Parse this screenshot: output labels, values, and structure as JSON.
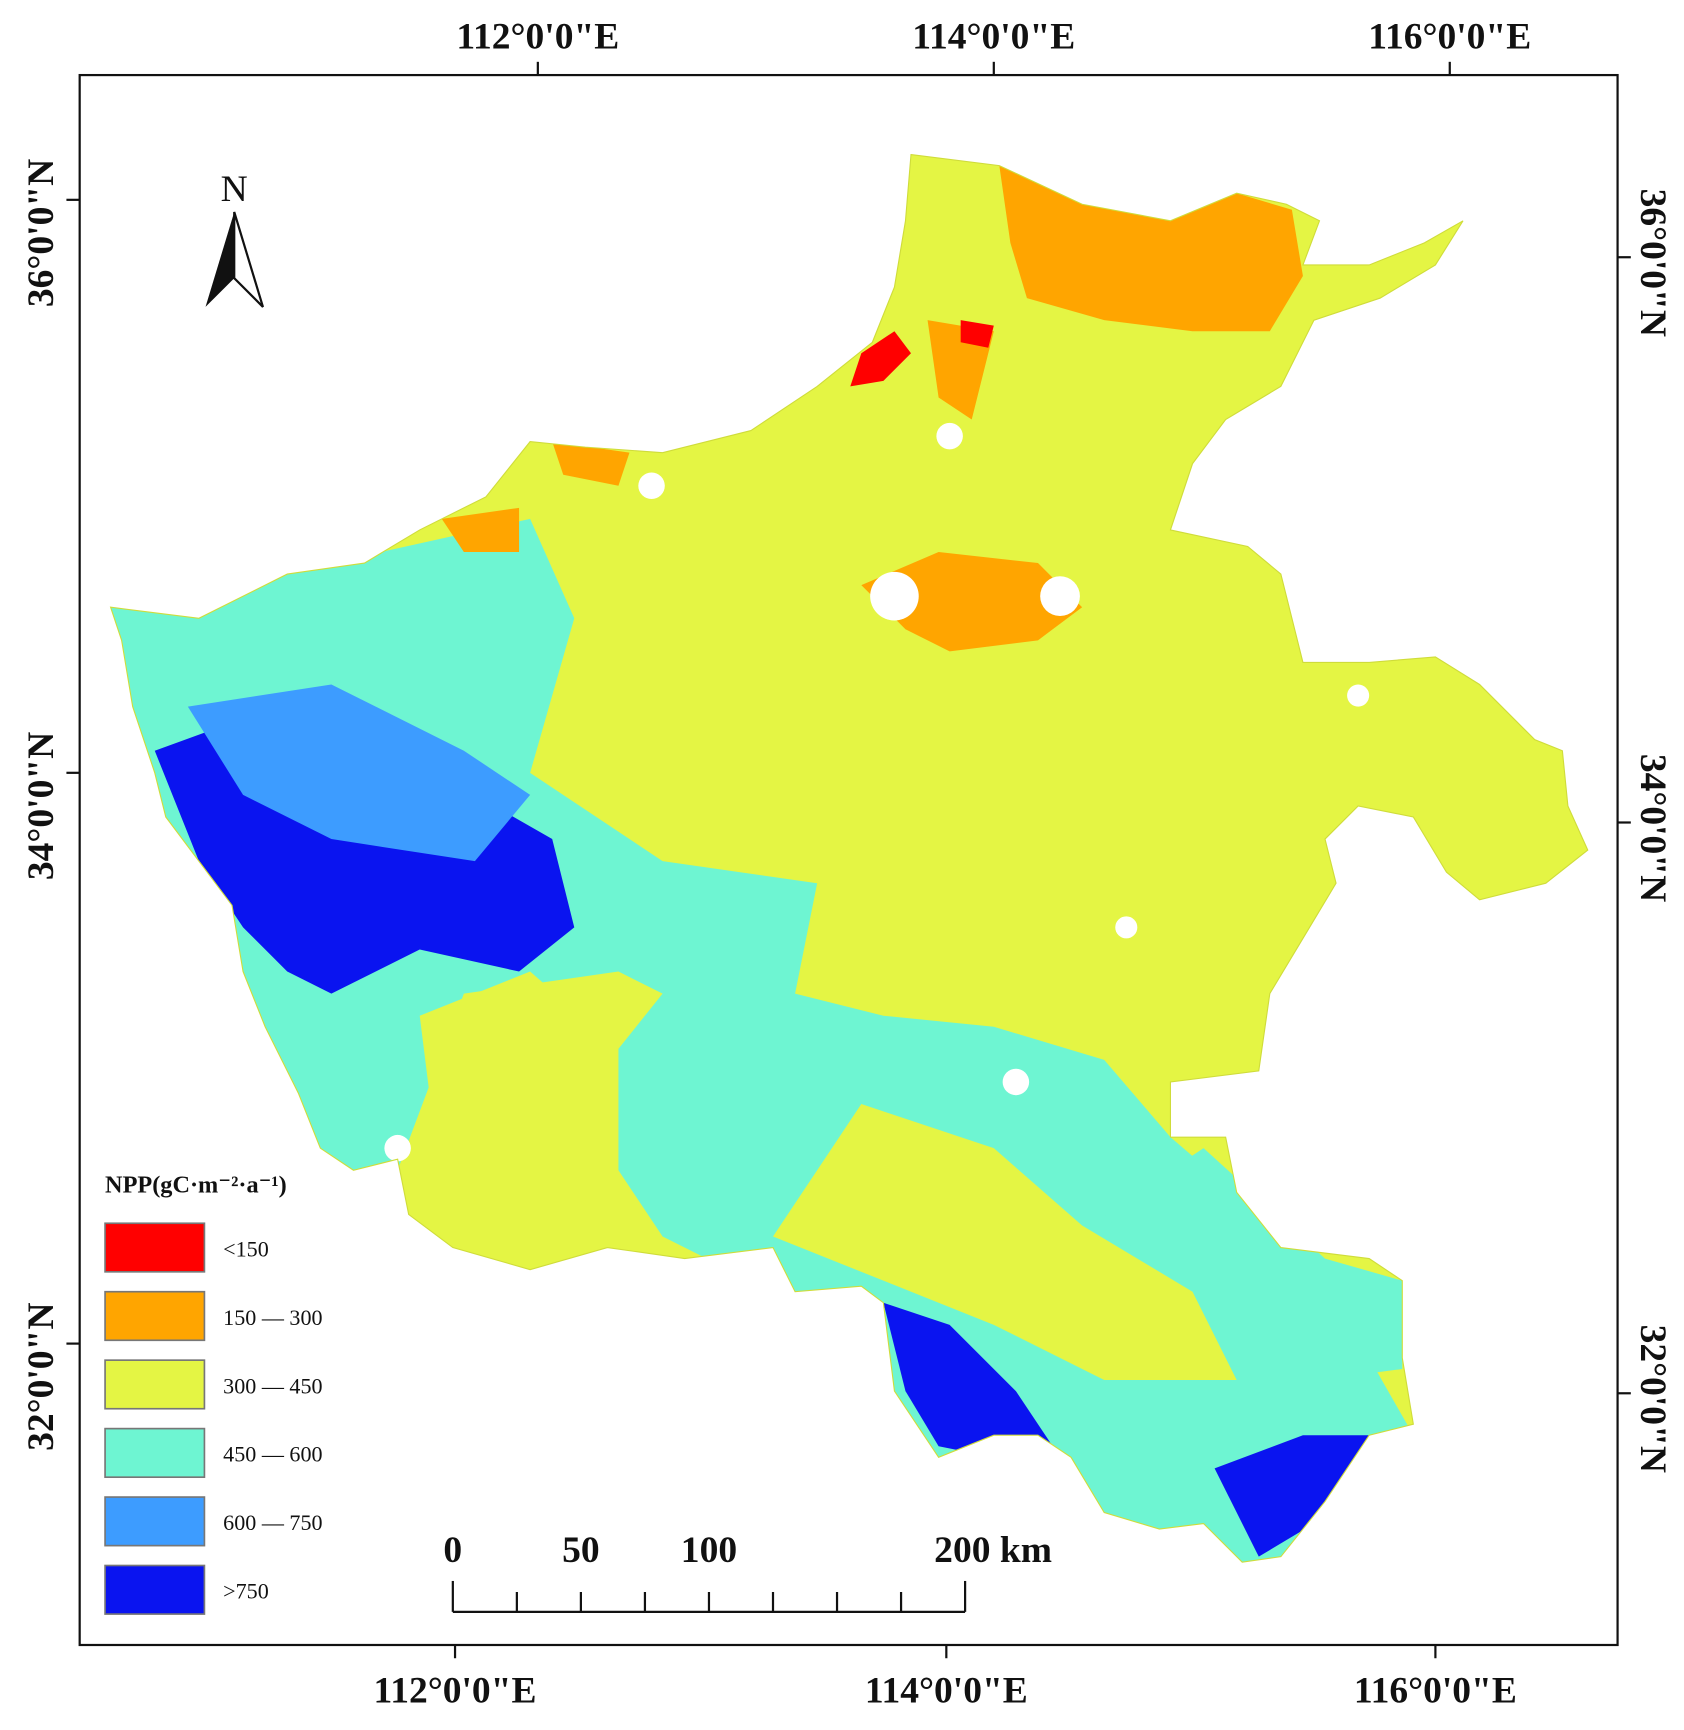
{
  "north": "N",
  "axes": {
    "top": [
      "112°0'0\"E",
      "114°0'0\"E",
      "116°0'0\"E"
    ],
    "bottom": [
      "112°0'0\"E",
      "114°0'0\"E",
      "116°0'0\"E"
    ],
    "left": [
      "36°0'0\"N",
      "34°0'0\"N",
      "32°0'0\"N"
    ],
    "right": [
      "36°0'0\"N",
      "34°0'0\"N",
      "32°0'0\"N"
    ]
  },
  "legend": {
    "title": "NPP(gC·m⁻²·a⁻¹)",
    "items": [
      {
        "label": "<150",
        "color": "#ff0000"
      },
      {
        "label": "150 — 300",
        "color": "#ffa500"
      },
      {
        "label": "300 — 450",
        "color": "#e4f544"
      },
      {
        "label": "450 — 600",
        "color": "#6ef5d2"
      },
      {
        "label": "600 — 750",
        "color": "#3d9cff"
      },
      {
        "label": ">750",
        "color": "#0a14f0"
      }
    ]
  },
  "scale_bar": {
    "labels": [
      "0",
      "50",
      "100",
      "200 km"
    ]
  }
}
